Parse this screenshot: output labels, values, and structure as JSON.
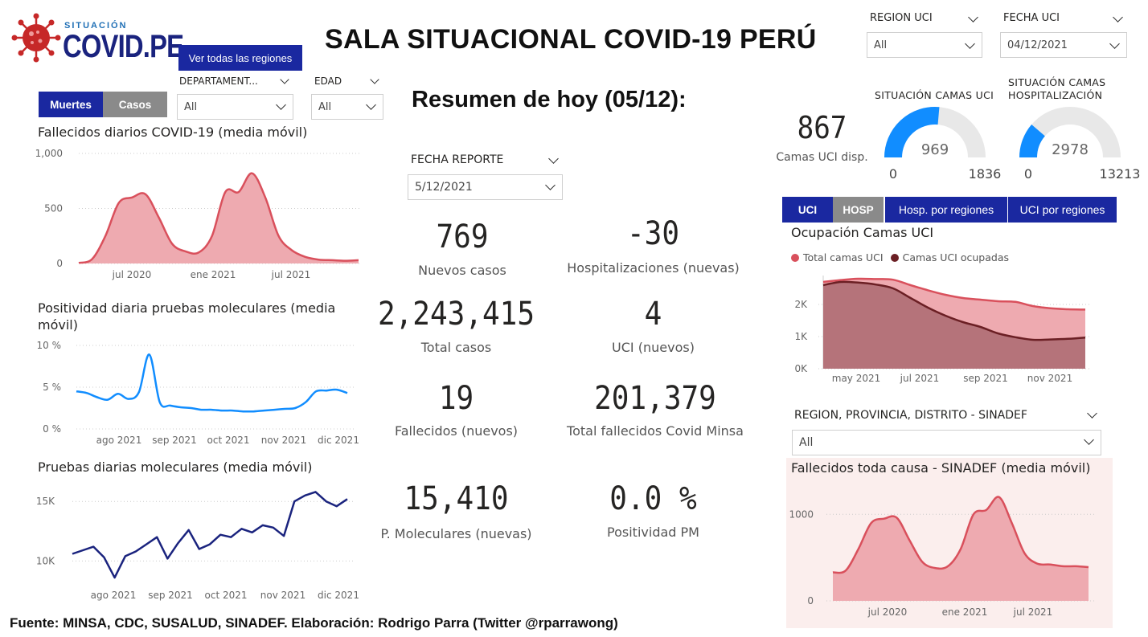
{
  "logo": {
    "small": "SITUACIÓN",
    "big": "COVID.PE"
  },
  "header": {
    "title": "SALA SITUACIONAL COVID-19 PERÚ",
    "regions_button": "Ver todas las regiones"
  },
  "filters": {
    "region_uci": {
      "label": "REGION UCI",
      "value": "All"
    },
    "fecha_uci": {
      "label": "FECHA UCI",
      "value": "04/12/2021"
    },
    "departamento": {
      "label": "DEPARTAMENT...",
      "value": "All"
    },
    "edad": {
      "label": "EDAD",
      "value": "All"
    },
    "fecha_reporte": {
      "label": "FECHA REPORTE",
      "value": "5/12/2021"
    },
    "sinadef_region": {
      "label": "REGION, PROVINCIA, DISTRITO - SINADEF",
      "value": "All"
    }
  },
  "left_tabs": {
    "muertes": "Muertes",
    "casos": "Casos"
  },
  "summary": {
    "title": "Resumen de hoy (05/12):",
    "kpis": [
      {
        "value": "769",
        "label": "Nuevos casos"
      },
      {
        "value": "-30",
        "label": "Hospitalizaciones (nuevas)"
      },
      {
        "value": "2,243,415",
        "label": "Total casos"
      },
      {
        "value": "4",
        "label": "UCI (nuevos)"
      },
      {
        "value": "19",
        "label": "Fallecidos  (nuevos)"
      },
      {
        "value": "201,379",
        "label": "Total fallecidos Covid Minsa"
      },
      {
        "value": "15,410",
        "label": "P. Moleculares (nuevas)"
      },
      {
        "value": "0.0 %",
        "label": "Positividad PM"
      }
    ]
  },
  "beds": {
    "uci_available_value": "867",
    "uci_available_label": "Camas UCI disp.",
    "gauge_uci": {
      "title": "SITUACIÓN CAMAS UCI",
      "value": 969,
      "min": 0,
      "max": 1836,
      "color": "#118dff"
    },
    "gauge_hosp": {
      "title_line1": "SITUACIÓN CAMAS",
      "title_line2": "HOSPITALIZACIÓN",
      "value": 2978,
      "min": 0,
      "max": 13213,
      "color": "#118dff"
    }
  },
  "right_tabs": {
    "uci": "UCI",
    "hosp": "HOSP",
    "hosp_regiones": "Hosp. por regiones",
    "uci_regiones": "UCI por regiones"
  },
  "footer": "Fuente: MINSA, CDC, SUSALUD, SINADEF. Elaboración: Rodrigo Parra (Twitter @rparrawong)",
  "chart_data": [
    {
      "id": "deaths",
      "type": "area",
      "title": "Fallecidos diarios COVID-19 (media móvil)",
      "yticks": [
        "1,000",
        "500",
        "0"
      ],
      "xticks": [
        "jul 2020",
        "ene 2021",
        "jul 2021"
      ],
      "ylim": [
        0,
        1000
      ],
      "color": "#d9505c",
      "fill": "#eeaab0",
      "x": [
        "2020-03",
        "2020-04",
        "2020-05",
        "2020-06",
        "2020-07",
        "2020-08",
        "2020-09",
        "2020-10",
        "2020-11",
        "2020-12",
        "2021-01",
        "2021-02",
        "2021-03",
        "2021-04",
        "2021-05",
        "2021-06",
        "2021-07",
        "2021-08",
        "2021-09",
        "2021-10",
        "2021-11",
        "2021-12"
      ],
      "values": [
        5,
        40,
        250,
        550,
        600,
        630,
        420,
        180,
        110,
        100,
        250,
        650,
        650,
        820,
        600,
        250,
        120,
        60,
        35,
        30,
        25,
        30
      ]
    },
    {
      "id": "positivity",
      "type": "line",
      "title": "Positividad diaria pruebas moleculares (media móvil)",
      "yticks": [
        "10 %",
        "5 %",
        "0 %"
      ],
      "xticks": [
        "ago 2021",
        "sep 2021",
        "oct 2021",
        "nov 2021",
        "dic 2021"
      ],
      "ylim": [
        0,
        10
      ],
      "color": "#118dff",
      "values": [
        4.5,
        4.3,
        3.8,
        3.5,
        4.2,
        3.6,
        4.4,
        8.9,
        3.2,
        2.8,
        2.6,
        2.5,
        2.3,
        2.3,
        2.2,
        2.2,
        2.1,
        2.1,
        2.2,
        2.3,
        2.4,
        2.5,
        3.2,
        4.5,
        4.6,
        4.7,
        4.3
      ]
    },
    {
      "id": "tests",
      "type": "line",
      "title": "Pruebas diarias moleculares (media móvil)",
      "yticks": [
        "15K",
        "10K"
      ],
      "xticks": [
        "ago 2021",
        "sep 2021",
        "oct 2021",
        "nov 2021",
        "dic 2021"
      ],
      "ylim": [
        8000,
        16500
      ],
      "color": "#1a237e",
      "values": [
        10600,
        10900,
        11200,
        10300,
        8600,
        10400,
        10800,
        11400,
        12000,
        10200,
        11500,
        12600,
        11000,
        11400,
        12200,
        12000,
        12700,
        12400,
        13000,
        12800,
        12100,
        15000,
        15500,
        15800,
        15000,
        14600,
        15200
      ]
    },
    {
      "id": "uci_occupancy",
      "type": "area",
      "title": "Ocupación Camas UCI",
      "legend": [
        "Total camas UCI",
        "Camas UCI ocupadas"
      ],
      "legend_colors": [
        "#d9505c",
        "#6b1f24"
      ],
      "yticks": [
        "2K",
        "1K",
        "0K"
      ],
      "xticks": [
        "may 2021",
        "jul 2021",
        "sep 2021",
        "nov 2021"
      ],
      "ylim": [
        0,
        3000
      ],
      "series": [
        {
          "name": "Total camas UCI",
          "values": [
            2700,
            2760,
            2800,
            2790,
            2770,
            2600,
            2440,
            2300,
            2200,
            2150,
            2100,
            2080,
            1950,
            1880,
            1850,
            1840
          ]
        },
        {
          "name": "Camas UCI ocupadas",
          "values": [
            2600,
            2700,
            2680,
            2620,
            2500,
            2200,
            1900,
            1650,
            1450,
            1300,
            1100,
            980,
            900,
            910,
            930,
            969
          ]
        }
      ]
    },
    {
      "id": "sinadef",
      "type": "area",
      "title": "Fallecidos toda causa - SINADEF (media móvil)",
      "yticks": [
        "1000",
        "0"
      ],
      "xticks": [
        "jul 2020",
        "ene 2021",
        "jul 2021"
      ],
      "ylim": [
        0,
        1300
      ],
      "color": "#d9505c",
      "fill": "#eeaab0",
      "values": [
        330,
        350,
        600,
        900,
        950,
        960,
        700,
        450,
        380,
        400,
        600,
        1000,
        1050,
        1200,
        900,
        550,
        430,
        420,
        400,
        400,
        390
      ]
    }
  ]
}
